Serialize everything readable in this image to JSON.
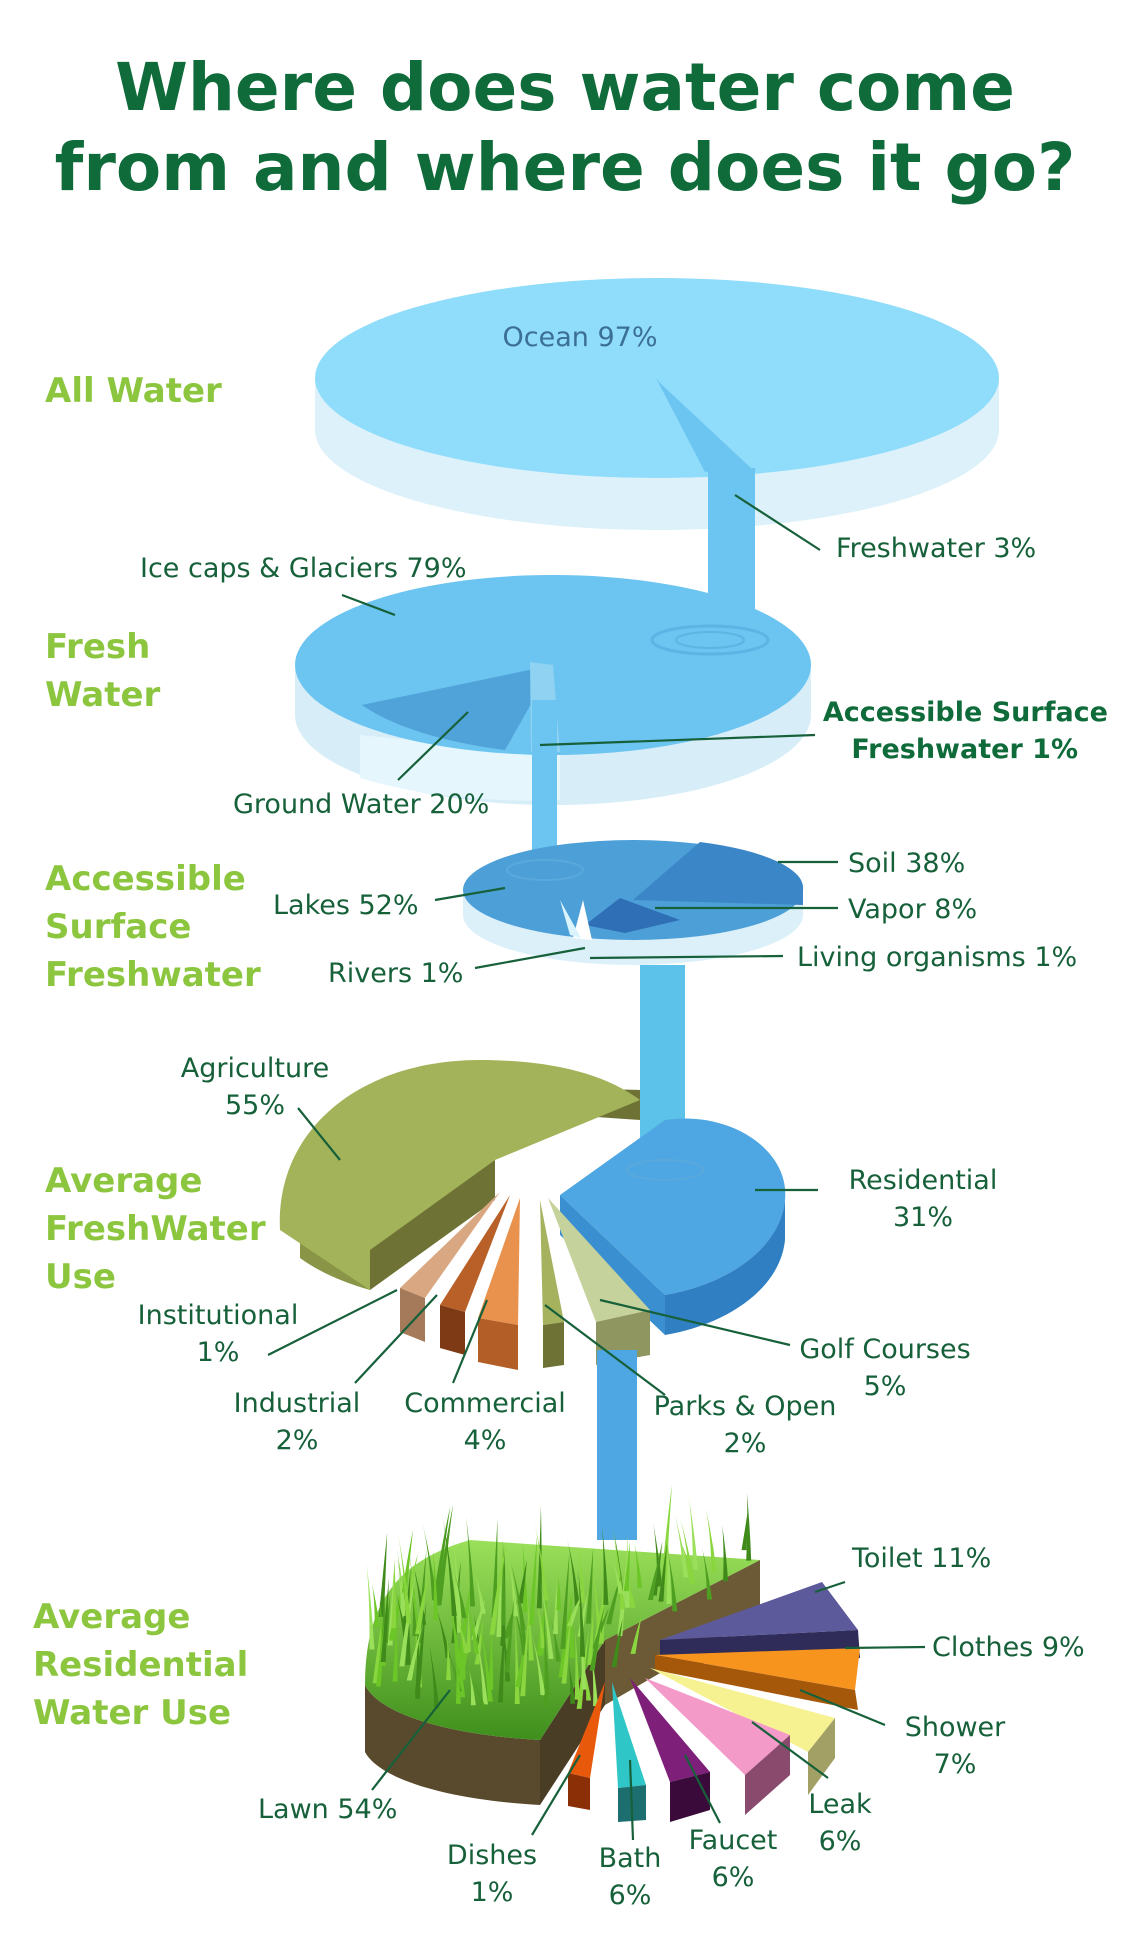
{
  "title": {
    "line1": "Where does water come",
    "line2": "from and where does it go?"
  },
  "sections": {
    "all_water": "All  Water",
    "fresh_water": [
      "Fresh",
      "Water"
    ],
    "accessible": [
      "Accessible",
      "Surface",
      "Freshwater"
    ],
    "freshwater_use": [
      "Average",
      "FreshWater",
      "Use"
    ],
    "residential_use": [
      "Average",
      "Residential",
      "Water Use"
    ]
  },
  "labels": {
    "ocean": "Ocean 97%",
    "freshwater": "Freshwater 3%",
    "ice_caps": "Ice caps & Glaciers 79%",
    "ground_water": "Ground Water 20%",
    "accessible_surface": [
      "Accessible Surface",
      "Freshwater 1%"
    ],
    "soil": "Soil 38%",
    "vapor": "Vapor  8%",
    "lakes": "Lakes 52%",
    "living": "Living organisms 1%",
    "rivers": "Rivers  1%",
    "agriculture": [
      "Agriculture",
      "55%"
    ],
    "residential": [
      "Residential",
      "31%"
    ],
    "institutional": [
      "Institutional",
      "1%"
    ],
    "industrial": [
      "Industrial",
      "2%"
    ],
    "commercial": [
      "Commercial",
      "4%"
    ],
    "parks": [
      "Parks & Open",
      "2%"
    ],
    "golf": [
      "Golf Courses",
      "5%"
    ],
    "toilet": "Toilet 11%",
    "clothes": "Clothes 9%",
    "shower": [
      "Shower",
      "7%"
    ],
    "leak": [
      "Leak",
      "6%"
    ],
    "faucet": [
      "Faucet",
      "6%"
    ],
    "bath": [
      "Bath",
      "6%"
    ],
    "dishes": [
      "Dishes",
      "1%"
    ],
    "lawn": "Lawn 54%"
  },
  "colors": {
    "title": "#0f6b3a",
    "section": "#8cc63f",
    "label": "#16603a",
    "ocean": "#8fdcfb",
    "freshwater": "#6cc4f0",
    "ground_water": "#4fa3d9",
    "agriculture": "#a3b35a",
    "residential": "#4ea7e2",
    "lawn": "#6cc627",
    "toilet": "#5d5a9c",
    "clothes": "#f7941d",
    "shower": "#f6f291",
    "leak": "#f49ac8",
    "faucet": "#7e1f7a",
    "bath": "#2fc6c7",
    "dishes": "#e8590c"
  },
  "chart_data": [
    {
      "type": "pie",
      "title": "All  Water",
      "series": [
        {
          "values": [
            97,
            3
          ]
        }
      ],
      "categories": [
        "Ocean",
        "Freshwater"
      ]
    },
    {
      "type": "pie",
      "title": "Fresh Water",
      "series": [
        {
          "values": [
            79,
            20,
            1
          ]
        }
      ],
      "categories": [
        "Ice caps & Glaciers",
        "Ground Water",
        "Accessible Surface Freshwater"
      ]
    },
    {
      "type": "pie",
      "title": "Accessible Surface Freshwater",
      "series": [
        {
          "values": [
            52,
            38,
            8,
            1,
            1
          ]
        }
      ],
      "categories": [
        "Lakes",
        "Soil",
        "Vapor",
        "Living organisms",
        "Rivers"
      ]
    },
    {
      "type": "pie",
      "title": "Average FreshWater Use",
      "series": [
        {
          "values": [
            55,
            31,
            5,
            2,
            4,
            2,
            1
          ]
        }
      ],
      "categories": [
        "Agriculture",
        "Residential",
        "Golf Courses",
        "Parks & Open",
        "Commercial",
        "Industrial",
        "Institutional"
      ]
    },
    {
      "type": "pie",
      "title": "Average Residential Water Use",
      "series": [
        {
          "values": [
            54,
            11,
            9,
            7,
            6,
            6,
            6,
            1
          ]
        }
      ],
      "categories": [
        "Lawn",
        "Toilet",
        "Clothes",
        "Shower",
        "Leak",
        "Faucet",
        "Bath",
        "Dishes"
      ]
    }
  ]
}
